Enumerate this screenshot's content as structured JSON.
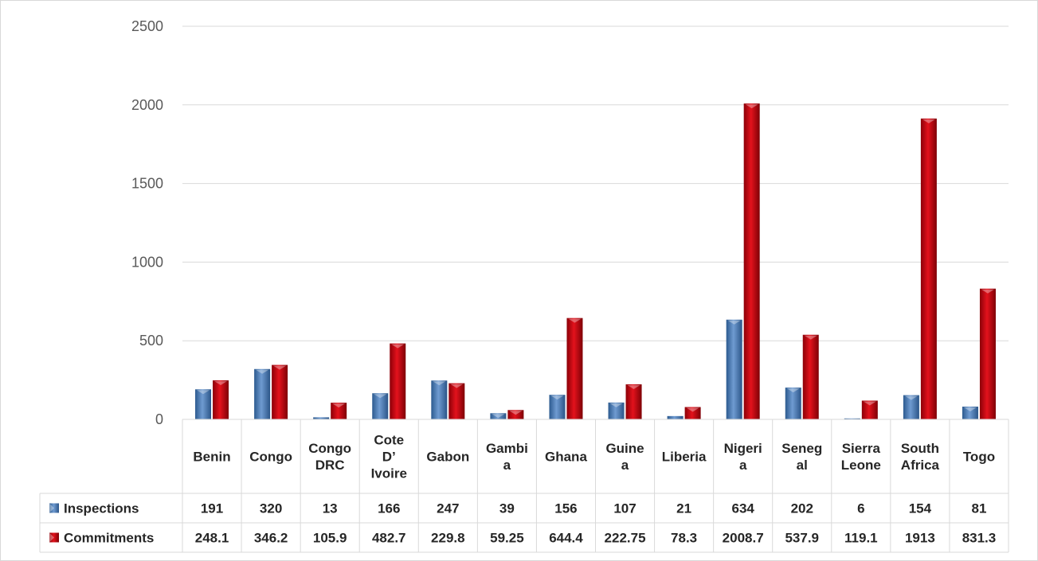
{
  "chart_data": {
    "type": "bar",
    "categories": [
      [
        "Benin"
      ],
      [
        "Congo"
      ],
      [
        "Congo",
        "DRC"
      ],
      [
        "Cote",
        "D’",
        "Ivoire"
      ],
      [
        "Gabon"
      ],
      [
        "Gambi",
        "a"
      ],
      [
        "Ghana"
      ],
      [
        "Guine",
        "a"
      ],
      [
        "Liberia"
      ],
      [
        "Nigeri",
        "a"
      ],
      [
        "Seneg",
        "al"
      ],
      [
        "Sierra",
        "Leone"
      ],
      [
        "South",
        "Africa"
      ],
      [
        "Togo"
      ]
    ],
    "series": [
      {
        "name": "Inspections",
        "color": "#4f81bd",
        "values": [
          191,
          320,
          13,
          166,
          247,
          39,
          156,
          107,
          21,
          634,
          202,
          6,
          154,
          81
        ],
        "labels": [
          "191",
          "320",
          "13",
          "166",
          "247",
          "39",
          "156",
          "107",
          "21",
          "634",
          "202",
          "6",
          "154",
          "81"
        ]
      },
      {
        "name": "Commitments",
        "color": "#c0000b",
        "values": [
          248.1,
          346.2,
          105.9,
          482.7,
          229.8,
          59.25,
          644.4,
          222.75,
          78.3,
          2008.7,
          537.9,
          119.1,
          1913,
          831.3
        ],
        "labels": [
          "248.1",
          "346.2",
          "105.9",
          "482.7",
          "229.8",
          "59.25",
          "644.4",
          "222.75",
          "78.3",
          "2008.7",
          "537.9",
          "119.1",
          "1913",
          "831.3"
        ]
      }
    ],
    "ylim": [
      0,
      2500
    ],
    "yticks": [
      "0",
      "500",
      "1000",
      "1500",
      "2000",
      "2500"
    ],
    "ytick_values": [
      0,
      500,
      1000,
      1500,
      2000,
      2500
    ],
    "grid": true,
    "legend": "data-table"
  }
}
